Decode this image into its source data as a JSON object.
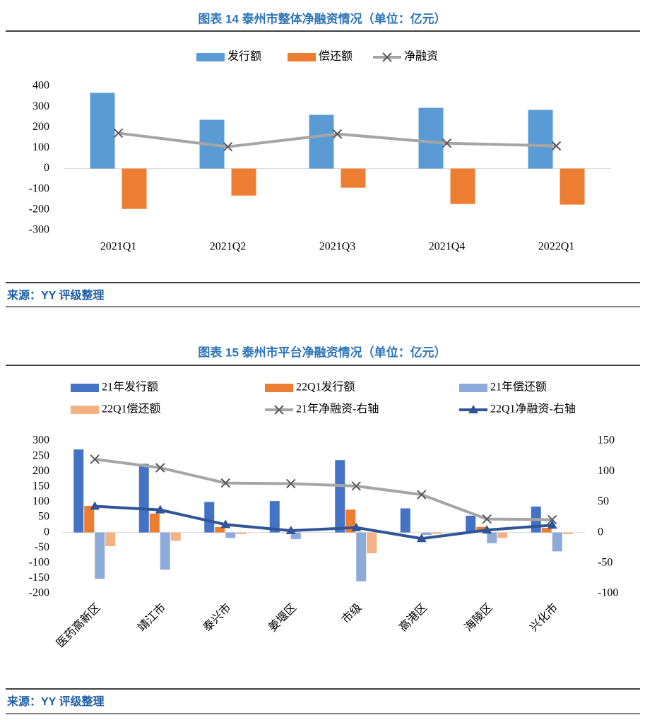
{
  "chart_data": [
    {
      "type": "combo",
      "title": "图表 14 泰州市整体净融资情况（单位：亿元）",
      "source": "来源：YY 评级整理",
      "categories": [
        "2021Q1",
        "2021Q2",
        "2021Q3",
        "2021Q4",
        "2022Q1"
      ],
      "ylim": [
        -300,
        400
      ],
      "yticks": [
        -300,
        -200,
        -100,
        0,
        100,
        200,
        300,
        400
      ],
      "series": [
        {
          "name": "发行额",
          "type": "bar",
          "color": "#5b9bd5",
          "values": [
            368,
            237,
            261,
            295,
            285
          ]
        },
        {
          "name": "偿还额",
          "type": "bar",
          "color": "#ed7d31",
          "values": [
            -196,
            -131,
            -93,
            -172,
            -175
          ]
        },
        {
          "name": "净融资",
          "type": "line",
          "marker": "x",
          "color": "#a5a5a5",
          "values": [
            172,
            106,
            168,
            123,
            110
          ]
        }
      ]
    },
    {
      "type": "combo",
      "title": "图表 15 泰州市平台净融资情况（单位：亿元）",
      "source": "来源：YY 评级整理",
      "categories": [
        "医药高新区",
        "靖江市",
        "泰兴市",
        "姜堰区",
        "市级",
        "高港区",
        "海陵区",
        "兴化市"
      ],
      "ylim": [
        -200,
        300
      ],
      "yticks": [
        -200,
        -150,
        -100,
        -50,
        0,
        50,
        100,
        150,
        200,
        250,
        300
      ],
      "y2lim": [
        -100,
        150
      ],
      "y2ticks": [
        -100,
        -50,
        0,
        50,
        100,
        150
      ],
      "series": [
        {
          "name": "21年发行额",
          "type": "bar",
          "color": "#4472c4",
          "values": [
            272,
            225,
            100,
            103,
            237,
            79,
            55,
            85
          ]
        },
        {
          "name": "22Q1发行额",
          "type": "bar",
          "color": "#ed7d31",
          "values": [
            87,
            62,
            18,
            0,
            75,
            0,
            18,
            15
          ]
        },
        {
          "name": "21年偿还额",
          "type": "bar",
          "color": "#8eaadb",
          "values": [
            -152,
            -122,
            -18,
            -22,
            -160,
            -8,
            -35,
            -62
          ]
        },
        {
          "name": "22Q1偿还额",
          "type": "bar",
          "color": "#f4b183",
          "values": [
            -45,
            -27,
            -5,
            0,
            -68,
            -5,
            -18,
            -5
          ]
        },
        {
          "name": "21年净融资-右轴",
          "type": "line",
          "marker": "x",
          "axis": "y2",
          "color": "#a5a5a5",
          "values": [
            120,
            106,
            81,
            80,
            76,
            62,
            22,
            21
          ]
        },
        {
          "name": "22Q1净融资-右轴",
          "type": "line",
          "marker": "triangle",
          "axis": "y2",
          "color": "#2f5597",
          "values": [
            43,
            37,
            13,
            3,
            8,
            -10,
            4,
            12
          ]
        }
      ]
    }
  ]
}
